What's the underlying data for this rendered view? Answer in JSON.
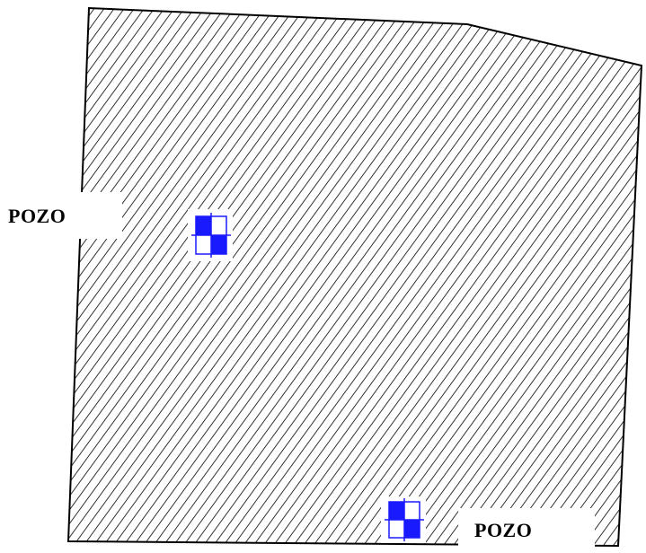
{
  "map": {
    "parcel": {
      "fill_pattern": "diagonal-hatch",
      "hatch_color": "#000000",
      "border_color": "#000000"
    },
    "wells": [
      {
        "label": "POZO",
        "icon": "well-symbol-icon",
        "symbol_color": "#1a1aff"
      },
      {
        "label": "POZO",
        "icon": "well-symbol-icon",
        "symbol_color": "#1a1aff"
      }
    ]
  }
}
